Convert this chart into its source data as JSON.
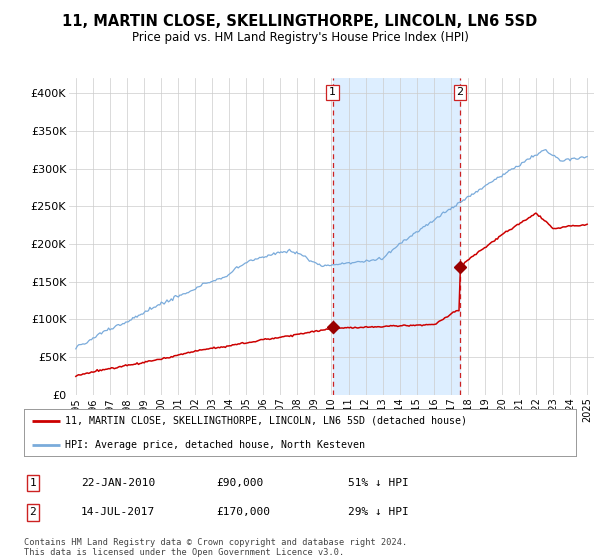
{
  "title": "11, MARTIN CLOSE, SKELLINGTHORPE, LINCOLN, LN6 5SD",
  "subtitle": "Price paid vs. HM Land Registry's House Price Index (HPI)",
  "ylim": [
    0,
    420000
  ],
  "yticks": [
    0,
    50000,
    100000,
    150000,
    200000,
    250000,
    300000,
    350000,
    400000
  ],
  "ytick_labels": [
    "£0",
    "£50K",
    "£100K",
    "£150K",
    "£200K",
    "£250K",
    "£300K",
    "£350K",
    "£400K"
  ],
  "hpi_color": "#7aabdb",
  "price_color": "#cc0000",
  "marker_color": "#990000",
  "sale1_date_num": 2010.06,
  "sale1_price": 90000,
  "sale1_label": "1",
  "sale2_date_num": 2017.54,
  "sale2_price": 170000,
  "sale2_label": "2",
  "vline_color": "#cc2222",
  "highlight_color": "#ddeeff",
  "legend_label1": "11, MARTIN CLOSE, SKELLINGTHORPE, LINCOLN, LN6 5SD (detached house)",
  "legend_label2": "HPI: Average price, detached house, North Kesteven",
  "table_row1": [
    "1",
    "22-JAN-2010",
    "£90,000",
    "51% ↓ HPI"
  ],
  "table_row2": [
    "2",
    "14-JUL-2017",
    "£170,000",
    "29% ↓ HPI"
  ],
  "footer": "Contains HM Land Registry data © Crown copyright and database right 2024.\nThis data is licensed under the Open Government Licence v3.0.",
  "bg_color": "#ffffff",
  "grid_color": "#cccccc"
}
